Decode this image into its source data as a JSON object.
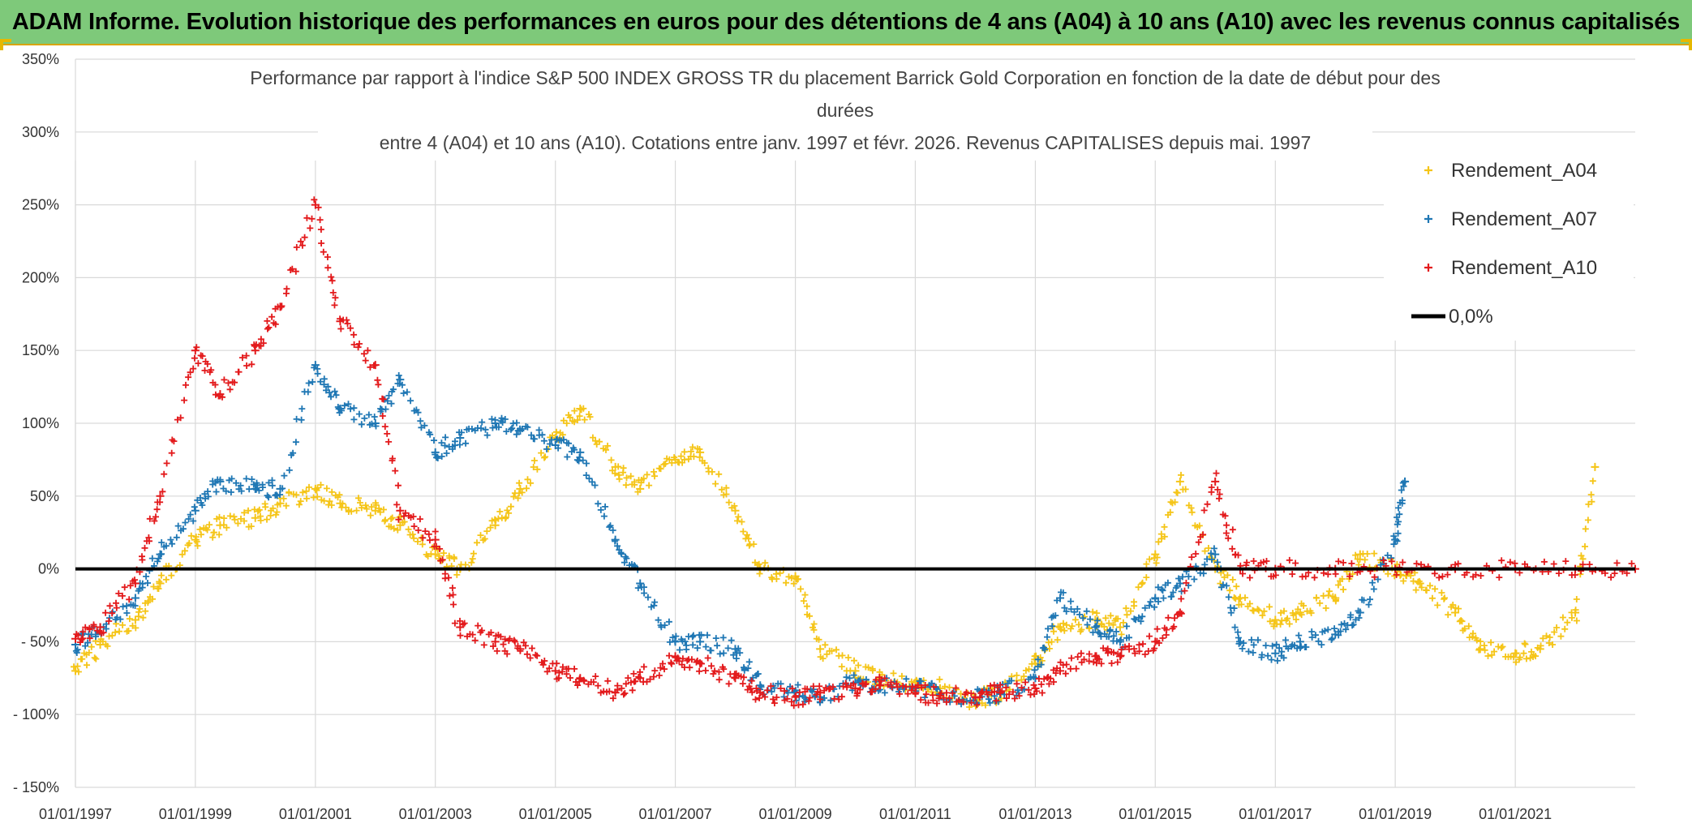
{
  "banner": {
    "title": "ADAM Informe. Evolution historique des performances en euros pour des détentions de 4 ans (A04) à 10 ans (A10) avec les revenus connus capitalisés"
  },
  "chart_data": {
    "type": "scatter",
    "title_lines": [
      "Performance par rapport à l'indice S&P 500 INDEX GROSS TR  du placement Barrick Gold Corporation en fonction de la date de début pour des",
      "durées",
      "entre 4 (A04) et 10 ans (A10). Cotations entre janv. 1997 et févr. 2026. Revenus CAPITALISES depuis mai. 1997"
    ],
    "xlabel": "",
    "ylabel": "",
    "x_ticks": [
      "01/01/1997",
      "01/01/1999",
      "01/01/2001",
      "01/01/2003",
      "01/01/2005",
      "01/01/2007",
      "01/01/2009",
      "01/01/2011",
      "01/01/2013",
      "01/01/2015",
      "01/01/2017",
      "01/01/2019",
      "01/01/2021"
    ],
    "y_ticks": [
      "350%",
      "300%",
      "250%",
      "200%",
      "150%",
      "100%",
      "50%",
      "0%",
      "- 50%",
      "- 100%",
      "- 150%"
    ],
    "xlim": [
      "1997-01-01",
      "2023-01-01"
    ],
    "ylim": [
      -150,
      350
    ],
    "grid": true,
    "legend_position": "top-right",
    "series": [
      {
        "name": "Rendement_A04",
        "color": "#f5c518",
        "marker": "plus",
        "x": [
          "1997-01",
          "1997-06",
          "1998-01",
          "1998-06",
          "1999-01",
          "1999-06",
          "2000-01",
          "2000-06",
          "2001-01",
          "2001-06",
          "2002-01",
          "2002-06",
          "2003-01",
          "2003-06",
          "2004-01",
          "2004-06",
          "2005-01",
          "2005-06",
          "2006-01",
          "2006-06",
          "2007-01",
          "2007-06",
          "2008-01",
          "2008-06",
          "2009-01",
          "2009-06",
          "2010-01",
          "2010-06",
          "2011-01",
          "2011-06",
          "2012-01",
          "2012-06",
          "2013-01",
          "2013-06",
          "2014-01",
          "2014-06",
          "2015-01",
          "2015-06",
          "2016-01",
          "2016-06",
          "2017-01",
          "2017-06",
          "2018-01",
          "2018-06",
          "2019-01",
          "2019-06",
          "2020-01",
          "2020-06",
          "2021-01",
          "2021-06",
          "2022-01",
          "2022-05"
        ],
        "y": [
          -70,
          -52,
          -35,
          -10,
          20,
          30,
          35,
          45,
          55,
          45,
          40,
          30,
          10,
          0,
          30,
          55,
          90,
          110,
          70,
          55,
          75,
          80,
          40,
          0,
          -5,
          -55,
          -70,
          -75,
          -78,
          -82,
          -90,
          -85,
          -65,
          -40,
          -35,
          -40,
          10,
          60,
          0,
          -20,
          -35,
          -30,
          -20,
          10,
          0,
          -10,
          -30,
          -55,
          -58,
          -55,
          -30,
          70
        ]
      },
      {
        "name": "Rendement_A07",
        "color": "#1f77b4",
        "marker": "plus",
        "x": [
          "1997-01",
          "1997-06",
          "1998-01",
          "1998-06",
          "1999-01",
          "1999-06",
          "2000-01",
          "2000-06",
          "2001-01",
          "2001-06",
          "2002-01",
          "2002-06",
          "2003-01",
          "2003-06",
          "2004-01",
          "2004-06",
          "2005-01",
          "2005-06",
          "2006-01",
          "2006-06",
          "2007-01",
          "2007-06",
          "2008-01",
          "2008-06",
          "2009-01",
          "2009-06",
          "2010-01",
          "2010-06",
          "2011-01",
          "2011-06",
          "2012-01",
          "2012-06",
          "2013-01",
          "2013-06",
          "2014-01",
          "2014-06",
          "2015-01",
          "2015-06",
          "2016-01",
          "2016-06",
          "2017-01",
          "2017-06",
          "2018-01",
          "2018-06",
          "2019-01",
          "2019-03"
        ],
        "y": [
          -52,
          -40,
          -20,
          10,
          40,
          60,
          55,
          55,
          140,
          110,
          100,
          130,
          80,
          90,
          100,
          95,
          85,
          80,
          20,
          -10,
          -50,
          -50,
          -55,
          -80,
          -85,
          -88,
          -78,
          -80,
          -82,
          -86,
          -88,
          -86,
          -75,
          -20,
          -40,
          -50,
          -20,
          -10,
          10,
          -50,
          -58,
          -50,
          -45,
          -30,
          20,
          60
        ]
      },
      {
        "name": "Rendement_A10",
        "color": "#e31a1c",
        "marker": "plus",
        "x": [
          "1997-01",
          "1997-06",
          "1998-01",
          "1998-06",
          "1999-01",
          "1999-06",
          "2000-01",
          "2000-06",
          "2001-01",
          "2001-06",
          "2002-01",
          "2002-06",
          "2003-01",
          "2003-06",
          "2004-01",
          "2004-06",
          "2005-01",
          "2005-06",
          "2006-01",
          "2006-06",
          "2007-01",
          "2007-06",
          "2008-01",
          "2008-06",
          "2009-01",
          "2009-06",
          "2010-01",
          "2010-06",
          "2011-01",
          "2011-06",
          "2012-01",
          "2012-06",
          "2013-01",
          "2013-06",
          "2014-01",
          "2014-06",
          "2015-01",
          "2015-06",
          "2016-01",
          "2016-06",
          "2017-01",
          "2018-01",
          "2019-01",
          "2020-01",
          "2021-01",
          "2022-01",
          "2023-01"
        ],
        "y": [
          -48,
          -40,
          -10,
          50,
          150,
          120,
          150,
          180,
          250,
          170,
          140,
          40,
          20,
          -40,
          -50,
          -55,
          -70,
          -75,
          -85,
          -75,
          -60,
          -65,
          -75,
          -85,
          -88,
          -85,
          -82,
          -80,
          -85,
          -87,
          -88,
          -85,
          -82,
          -70,
          -60,
          -60,
          -50,
          -30,
          60,
          0,
          0,
          0,
          0,
          0,
          0,
          0,
          0
        ]
      },
      {
        "name": "0,0%",
        "color": "#000000",
        "marker": "line",
        "x": [
          "1997-01-01",
          "2023-01-01"
        ],
        "y": [
          0,
          0
        ]
      }
    ]
  }
}
